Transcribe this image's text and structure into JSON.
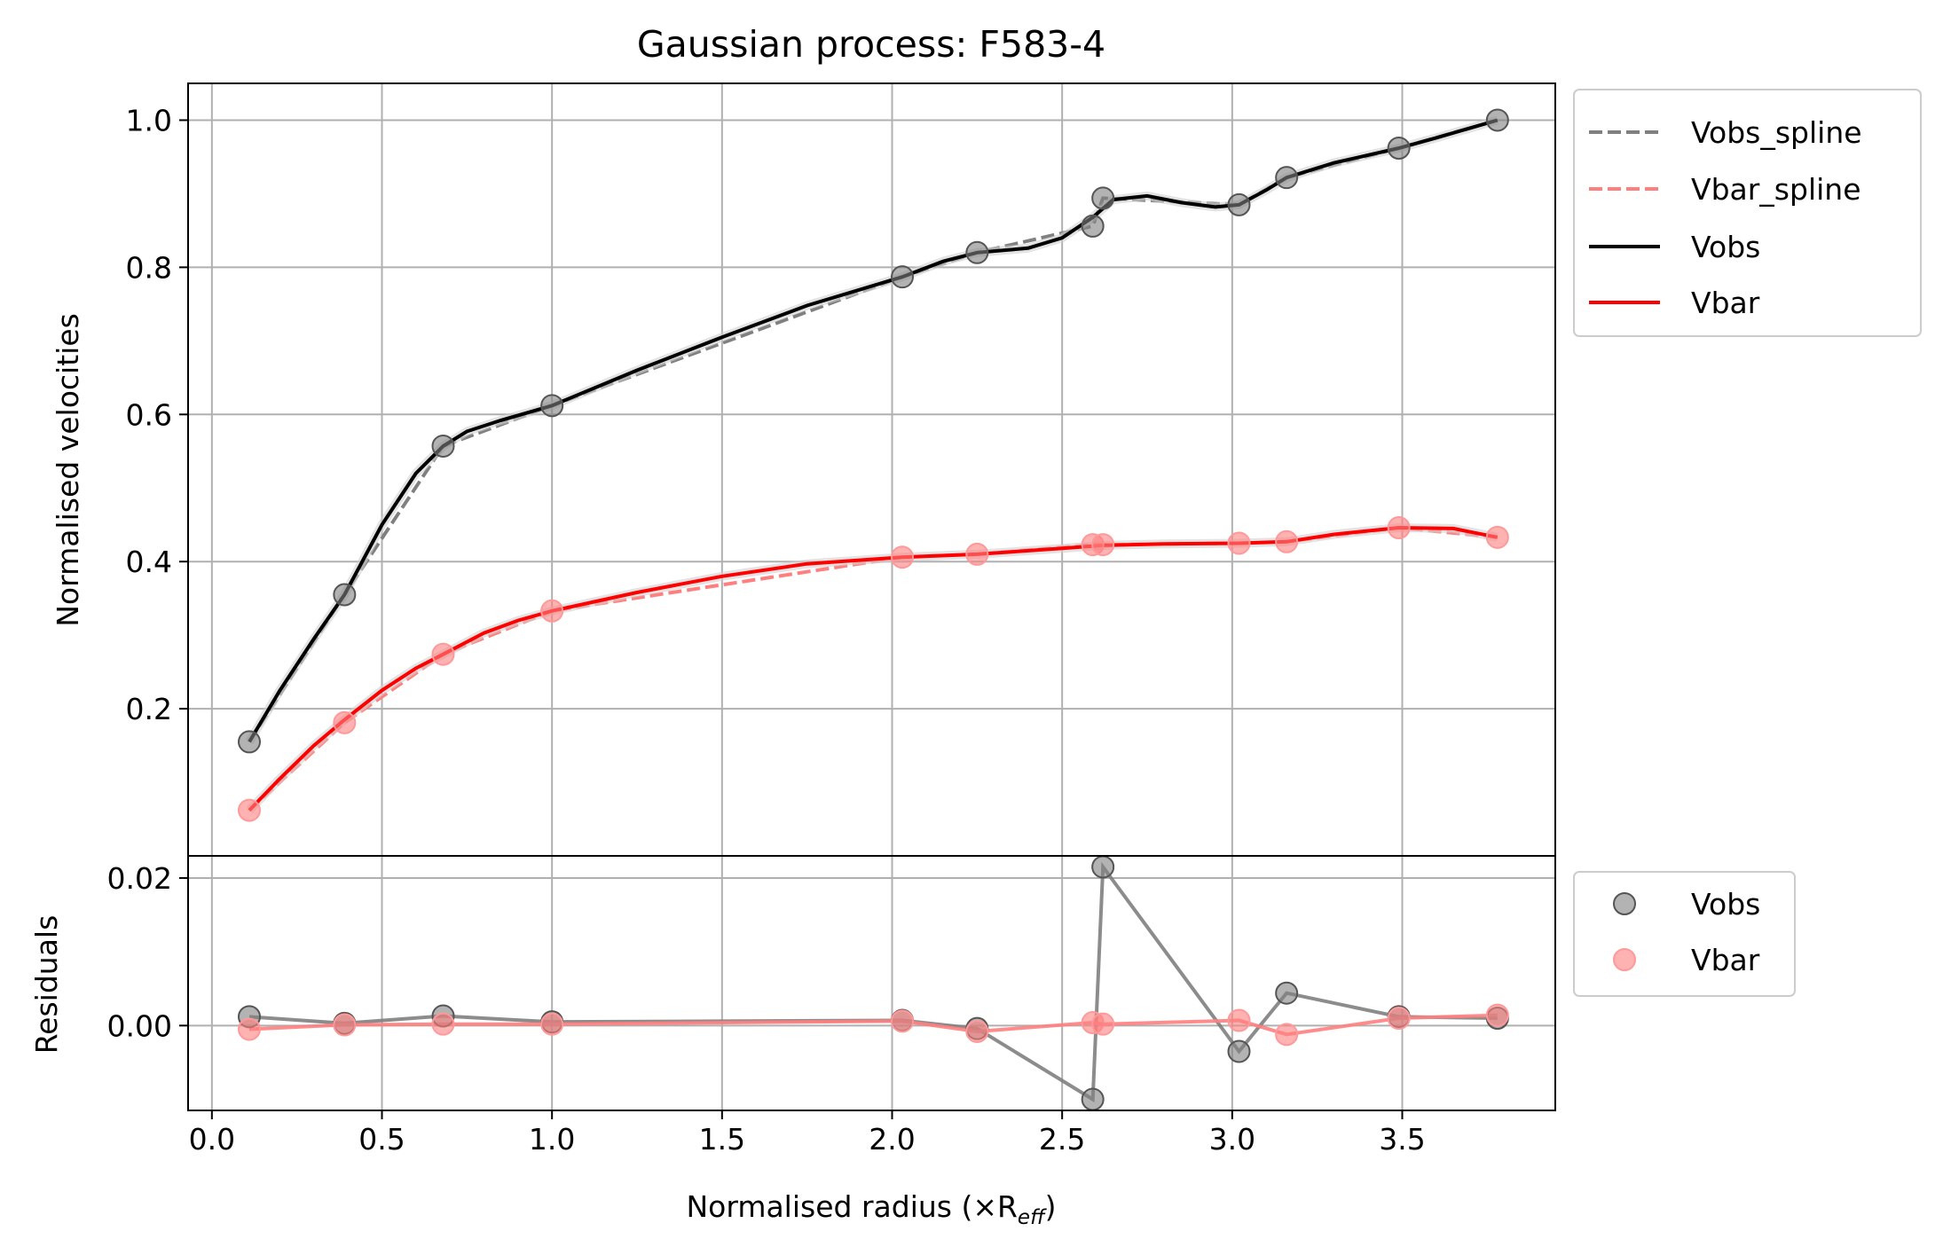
{
  "chart_data": [
    {
      "type": "line",
      "panel": "main",
      "title": "Gaussian process: F583-4",
      "ylabel": "Normalised velocities",
      "xlim": [
        -0.07,
        3.95
      ],
      "ylim": [
        0.0,
        1.05
      ],
      "xticks": [
        "0.0",
        "0.5",
        "1.0",
        "1.5",
        "2.0",
        "2.5",
        "3.0",
        "3.5"
      ],
      "xtick_values": [
        0,
        0.5,
        1,
        1.5,
        2,
        2.5,
        3,
        3.5
      ],
      "yticks": [
        "0.2",
        "0.4",
        "0.6",
        "0.8",
        "1.0"
      ],
      "ytick_values": [
        0.2,
        0.4,
        0.6,
        0.8,
        1.0
      ],
      "grid": true,
      "legend_position": "outside-right-top",
      "legend": [
        "Vobs_spline",
        "Vbar_spline",
        "Vobs",
        "Vbar"
      ],
      "x": [
        0.11,
        0.39,
        0.68,
        1.0,
        2.03,
        2.25,
        2.59,
        2.62,
        3.02,
        3.16,
        3.49,
        3.78
      ],
      "series": [
        {
          "name": "Vobs",
          "color": "#000000",
          "points": [
            0.155,
            0.355,
            0.557,
            0.612,
            0.787,
            0.82,
            0.856,
            0.894,
            0.885,
            0.922,
            0.962,
            1.0
          ],
          "curve_x": [
            0.11,
            0.2,
            0.3,
            0.39,
            0.5,
            0.6,
            0.68,
            0.75,
            0.85,
            1.0,
            1.25,
            1.5,
            1.75,
            2.03,
            2.15,
            2.25,
            2.4,
            2.5,
            2.59,
            2.65,
            2.75,
            2.85,
            2.95,
            3.02,
            3.1,
            3.16,
            3.3,
            3.49,
            3.6,
            3.78
          ],
          "curve_y": [
            0.155,
            0.225,
            0.295,
            0.355,
            0.45,
            0.52,
            0.557,
            0.577,
            0.592,
            0.612,
            0.66,
            0.705,
            0.748,
            0.787,
            0.808,
            0.82,
            0.826,
            0.84,
            0.868,
            0.892,
            0.897,
            0.888,
            0.882,
            0.885,
            0.905,
            0.922,
            0.942,
            0.962,
            0.976,
            1.0
          ]
        },
        {
          "name": "Vbar",
          "color": "#ff0000",
          "points": [
            0.062,
            0.181,
            0.274,
            0.333,
            0.406,
            0.41,
            0.423,
            0.423,
            0.425,
            0.427,
            0.446,
            0.433
          ],
          "curve_x": [
            0.11,
            0.2,
            0.3,
            0.39,
            0.5,
            0.6,
            0.68,
            0.8,
            0.9,
            1.0,
            1.25,
            1.5,
            1.75,
            2.03,
            2.25,
            2.5,
            2.59,
            2.62,
            2.8,
            3.02,
            3.16,
            3.3,
            3.49,
            3.65,
            3.78
          ],
          "curve_y": [
            0.062,
            0.105,
            0.15,
            0.185,
            0.225,
            0.255,
            0.274,
            0.303,
            0.32,
            0.333,
            0.358,
            0.38,
            0.397,
            0.406,
            0.41,
            0.418,
            0.421,
            0.422,
            0.424,
            0.425,
            0.427,
            0.437,
            0.446,
            0.445,
            0.433
          ]
        },
        {
          "name": "Vobs_spline",
          "color": "#808080",
          "dashed": true,
          "curve_x": [
            0.11,
            0.39,
            0.68,
            1.0,
            2.03,
            2.25,
            2.59,
            2.62,
            3.02,
            3.16,
            3.49,
            3.78
          ],
          "curve_y": [
            0.155,
            0.355,
            0.557,
            0.612,
            0.787,
            0.82,
            0.856,
            0.894,
            0.885,
            0.922,
            0.962,
            1.0
          ]
        },
        {
          "name": "Vbar_spline",
          "color": "#ff7f7f",
          "dashed": true,
          "curve_x": [
            0.11,
            0.39,
            0.68,
            1.0,
            2.03,
            2.25,
            2.59,
            2.62,
            3.02,
            3.16,
            3.49,
            3.78
          ],
          "curve_y": [
            0.062,
            0.181,
            0.274,
            0.333,
            0.406,
            0.41,
            0.423,
            0.423,
            0.425,
            0.427,
            0.446,
            0.433
          ]
        }
      ]
    },
    {
      "type": "scatter",
      "panel": "residuals",
      "xlabel": "Normalised radius (×R",
      "xlabel_sub": "eff",
      "xlabel_close": ")",
      "ylabel": "Residuals",
      "xlim": [
        -0.07,
        3.95
      ],
      "ylim": [
        -0.0115,
        0.023
      ],
      "yticks": [
        "0.00",
        "0.02"
      ],
      "ytick_values": [
        0.0,
        0.02
      ],
      "grid": true,
      "legend_position": "outside-right-top",
      "legend": [
        "Vobs",
        "Vbar"
      ],
      "x": [
        0.11,
        0.39,
        0.68,
        1.0,
        2.03,
        2.25,
        2.59,
        2.62,
        3.02,
        3.16,
        3.49,
        3.78
      ],
      "series": [
        {
          "name": "Vobs",
          "color": "#808080",
          "values": [
            0.0012,
            0.0003,
            0.0013,
            0.0005,
            0.0007,
            -0.0004,
            -0.01,
            0.0215,
            -0.0035,
            0.0044,
            0.0012,
            0.001
          ]
        },
        {
          "name": "Vbar",
          "color": "#ff7f7f",
          "values": [
            -0.0005,
            0.0001,
            0.0002,
            0.0002,
            0.0006,
            -0.0008,
            0.0004,
            0.0002,
            0.0007,
            -0.0012,
            0.001,
            0.0014
          ]
        }
      ]
    }
  ]
}
